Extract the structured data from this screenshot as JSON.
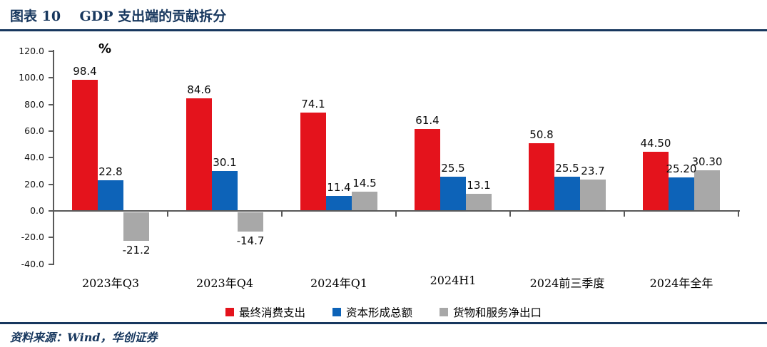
{
  "header": {
    "title": "图表 10    GDP 支出端的贡献拆分"
  },
  "footer": {
    "source_label": "资料来源：Wind，华创证券"
  },
  "colors": {
    "accent_navy": "#17375e",
    "axis_gray": "#595959",
    "series_red": "#e4131c",
    "series_blue": "#0d63b8",
    "series_gray": "#a8a8a8"
  },
  "chart_data": {
    "type": "bar",
    "title": "GDP 支出端的贡献拆分",
    "unit_label": "%",
    "categories": [
      "2023年Q3",
      "2023年Q4",
      "2024年Q1",
      "2024H1",
      "2024前三季度",
      "2024年全年"
    ],
    "series": [
      {
        "name": "最终消费支出",
        "color": "#e4131c",
        "values": [
          98.4,
          84.6,
          74.1,
          61.4,
          50.8,
          44.5
        ],
        "labels": [
          "98.4",
          "84.6",
          "74.1",
          "61.4",
          "50.8",
          "44.50"
        ]
      },
      {
        "name": "资本形成总额",
        "color": "#0d63b8",
        "values": [
          22.8,
          30.1,
          11.4,
          25.5,
          25.5,
          25.2
        ],
        "labels": [
          "22.8",
          "30.1",
          "11.4",
          "25.5",
          "25.5",
          "25.20"
        ]
      },
      {
        "name": "货物和服务净出口",
        "color": "#a8a8a8",
        "values": [
          -21.2,
          -14.7,
          14.5,
          13.1,
          23.7,
          30.3
        ],
        "labels": [
          "-21.2",
          "-14.7",
          "14.5",
          "13.1",
          "23.7",
          "30.30"
        ]
      }
    ],
    "y_axis": {
      "min": -40,
      "max": 120,
      "step": 20,
      "tick_labels": [
        "120.0",
        "100.0",
        "80.0",
        "60.0",
        "40.0",
        "20.0",
        "0.0",
        "-20.0",
        "-40.0"
      ]
    },
    "ylim": [
      -40,
      120
    ],
    "xlabel": "",
    "ylabel": "%",
    "grid": false,
    "legend_position": "bottom"
  }
}
